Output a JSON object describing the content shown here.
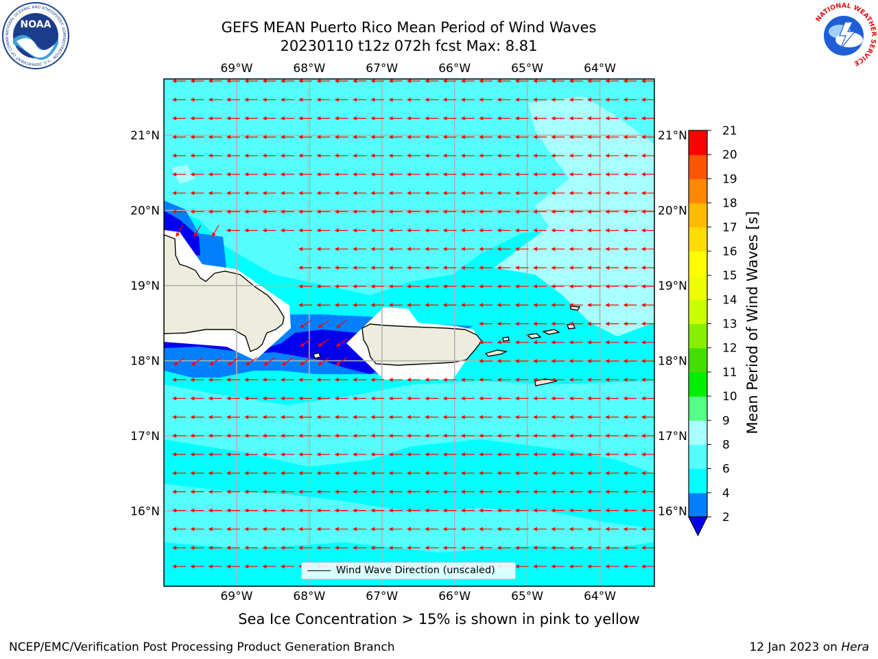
{
  "title_line1": "GEFS MEAN Puerto Rico Mean Period of Wind Waves",
  "title_line2": "20230110 t12z 072h fcst   Max: 8.81",
  "colors": {
    "ocean": "#00ffff",
    "light_cyan": "#55ffff",
    "pale_cyan": "#a8ffff",
    "blue": "#0080ff",
    "deep_blue": "#0000ee",
    "land": "#eeeddd",
    "arrow": "#ff0000",
    "grid": "#b0b0b0"
  },
  "map": {
    "lon_labels": [
      "69°W",
      "68°W",
      "67°W",
      "66°W",
      "65°W",
      "64°W"
    ],
    "lat_labels": [
      "21°N",
      "20°N",
      "19°N",
      "18°N",
      "17°N",
      "16°N"
    ],
    "extent": {
      "lon_min": -70.0,
      "lon_max": -63.25,
      "lat_min": 15.0,
      "lat_max": 21.75
    },
    "arrow_direction": "toward west",
    "legend_label": "Wind Wave Direction (unscaled)"
  },
  "colorbar": {
    "title": "Mean Period of Wind Waves [s]",
    "ticks": [
      "2",
      "4",
      "6",
      "8",
      "9",
      "10",
      "11",
      "12",
      "13",
      "14",
      "15",
      "16",
      "17",
      "18",
      "19",
      "20",
      "21"
    ],
    "levels": [
      2,
      4,
      6,
      8,
      9,
      10,
      11,
      12,
      13,
      14,
      15,
      16,
      17,
      18,
      19,
      20,
      21
    ],
    "colors": [
      "#0080ff",
      "#00ffff",
      "#55ffff",
      "#a8ffff",
      "#55ff88",
      "#00ee00",
      "#44dd00",
      "#88ee00",
      "#ccff00",
      "#eeff00",
      "#ffff00",
      "#ffdd00",
      "#ffbb00",
      "#ff8800",
      "#ff5500",
      "#ff2200"
    ],
    "extend_color": "#0000ee",
    "top_color": "#ff0000"
  },
  "subnote": "Sea Ice Concentration > 15% is shown in pink to yellow",
  "footer_left": "NCEP/EMC/Verification Post Processing Product Generation Branch",
  "footer_right_prefix": "12 Jan 2023 on ",
  "footer_right_machine": "Hera",
  "logos": {
    "noaa_text": "NOAA",
    "noaa_ring": "NATIONAL OCEANIC AND ATMOSPHERIC ADMINISTRATION · U.S. DEPARTMENT OF COMMERCE",
    "nws_ring": "NATIONAL WEATHER SERVICE"
  }
}
